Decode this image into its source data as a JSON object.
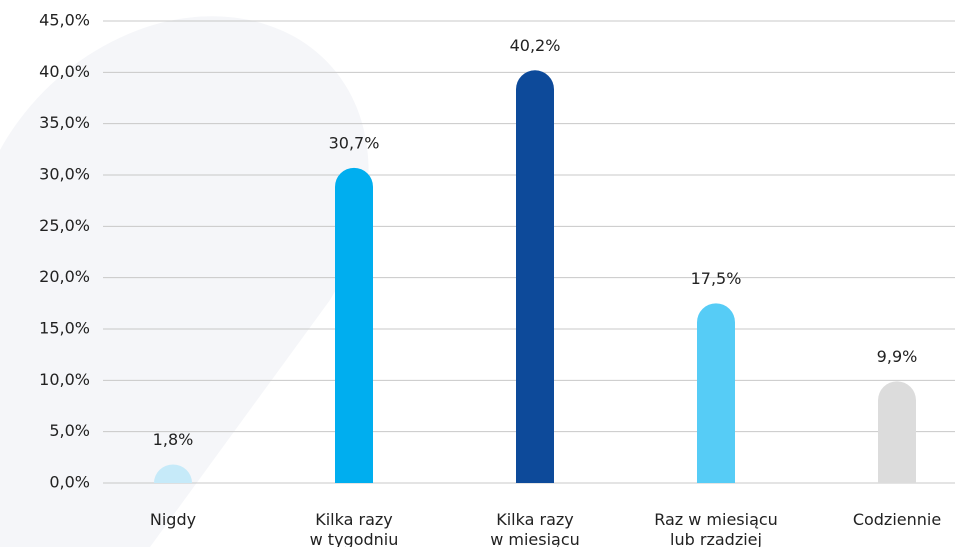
{
  "chart_data": {
    "type": "bar",
    "categories": [
      "Nigdy",
      "Kilka razy\nw tygodniu",
      "Kilka razy\nw miesiącu",
      "Raz w miesiącu\nlub rzadziej",
      "Codziennie"
    ],
    "values": [
      1.8,
      30.7,
      40.2,
      17.5,
      9.9
    ],
    "value_labels": [
      "1,8%",
      "30,7%",
      "40,2%",
      "17,5%",
      "9,9%"
    ],
    "colors": [
      "#c6eaf9",
      "#00aeef",
      "#0d4a9a",
      "#56ccf6",
      "#dcdcdc"
    ],
    "ylim": [
      0,
      45
    ],
    "yticks": [
      {
        "value": 0,
        "label": "0,0%"
      },
      {
        "value": 5,
        "label": "5,0%"
      },
      {
        "value": 10,
        "label": "10,0%"
      },
      {
        "value": 15,
        "label": "15,0%"
      },
      {
        "value": 20,
        "label": "20,0%"
      },
      {
        "value": 25,
        "label": "25,0%"
      },
      {
        "value": 30,
        "label": "30,0%"
      },
      {
        "value": 35,
        "label": "35,0%"
      },
      {
        "value": 40,
        "label": "40,0%"
      },
      {
        "value": 45,
        "label": "45,0%"
      }
    ],
    "grid": true
  }
}
